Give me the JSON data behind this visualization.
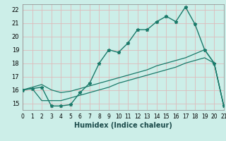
{
  "xlabel": "Humidex (Indice chaleur)",
  "bg_color": "#cceee8",
  "grid_color": "#b0d8d0",
  "line_color": "#1a7a6a",
  "xlim": [
    0,
    21
  ],
  "ylim": [
    14.5,
    22.4
  ],
  "xticks": [
    0,
    1,
    2,
    3,
    4,
    5,
    6,
    7,
    8,
    9,
    10,
    11,
    12,
    13,
    14,
    15,
    16,
    17,
    18,
    19,
    20,
    21
  ],
  "yticks": [
    15,
    16,
    17,
    18,
    19,
    20,
    21,
    22
  ],
  "line1_x": [
    0,
    1,
    2,
    3,
    4,
    5,
    6,
    7,
    8,
    9,
    10,
    11,
    12,
    13,
    14,
    15,
    16,
    17,
    18,
    19,
    20,
    21
  ],
  "line1_y": [
    16.0,
    16.1,
    16.2,
    14.8,
    14.8,
    14.9,
    15.8,
    16.5,
    18.0,
    19.0,
    18.8,
    19.5,
    20.5,
    20.5,
    21.1,
    21.5,
    21.1,
    22.2,
    20.9,
    19.0,
    18.0,
    14.8
  ],
  "line2_x": [
    0,
    1,
    2,
    3,
    4,
    5,
    6,
    7,
    8,
    9,
    10,
    11,
    12,
    13,
    14,
    15,
    16,
    17,
    18,
    19,
    20,
    21
  ],
  "line2_y": [
    16.0,
    16.2,
    16.4,
    16.0,
    15.8,
    15.9,
    16.1,
    16.3,
    16.5,
    16.7,
    16.9,
    17.1,
    17.3,
    17.5,
    17.8,
    18.0,
    18.2,
    18.4,
    18.7,
    19.0,
    18.0,
    14.8
  ],
  "line3_x": [
    0,
    1,
    2,
    3,
    4,
    5,
    6,
    7,
    8,
    9,
    10,
    11,
    12,
    13,
    14,
    15,
    16,
    17,
    18,
    19,
    20,
    21
  ],
  "line3_y": [
    16.0,
    16.1,
    15.2,
    15.2,
    15.2,
    15.4,
    15.6,
    15.8,
    16.0,
    16.2,
    16.5,
    16.7,
    16.9,
    17.1,
    17.3,
    17.5,
    17.7,
    18.0,
    18.2,
    18.4,
    18.0,
    14.8
  ]
}
